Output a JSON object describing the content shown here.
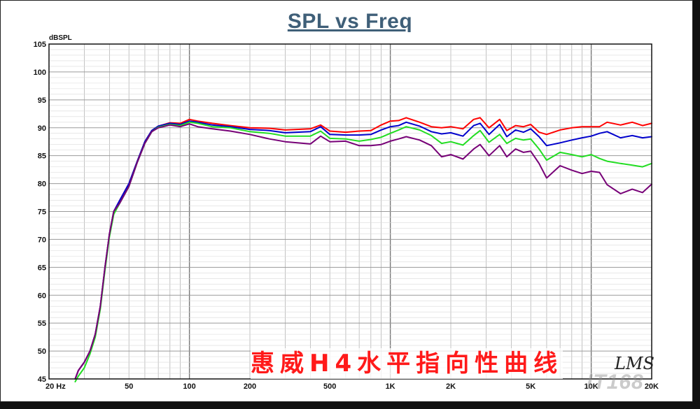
{
  "chart_data": {
    "type": "line",
    "title": "SPL vs Freq",
    "ylabel": "dBSPL",
    "xlabel": "",
    "x_scale": "log",
    "xlim": [
      20,
      20000
    ],
    "ylim": [
      45,
      105
    ],
    "y_ticks": [
      45,
      50,
      55,
      60,
      65,
      70,
      75,
      80,
      85,
      90,
      95,
      100,
      105
    ],
    "x_tick_labels": [
      {
        "value": 20,
        "label": "20  Hz"
      },
      {
        "value": 50,
        "label": "50"
      },
      {
        "value": 100,
        "label": "100"
      },
      {
        "value": 200,
        "label": "200"
      },
      {
        "value": 500,
        "label": "500"
      },
      {
        "value": 1000,
        "label": "1K"
      },
      {
        "value": 2000,
        "label": "2K"
      },
      {
        "value": 5000,
        "label": "5K"
      },
      {
        "value": 10000,
        "label": "10K"
      },
      {
        "value": 20000,
        "label": "20K"
      }
    ],
    "grid": true,
    "annotation": "惠威H4水平指向性曲线",
    "logo_text": "LMS",
    "watermark_text": "IT168",
    "series": [
      {
        "color": "#ff0000",
        "points": [
          [
            27,
            45
          ],
          [
            28,
            46.5
          ],
          [
            30,
            48
          ],
          [
            32,
            50
          ],
          [
            34,
            53
          ],
          [
            36,
            58
          ],
          [
            38,
            65
          ],
          [
            40,
            71
          ],
          [
            42,
            75
          ],
          [
            45,
            77
          ],
          [
            50,
            80
          ],
          [
            55,
            84
          ],
          [
            60,
            87.5
          ],
          [
            65,
            89.5
          ],
          [
            70,
            90.3
          ],
          [
            80,
            90.9
          ],
          [
            90,
            90.8
          ],
          [
            100,
            91.5
          ],
          [
            110,
            91.2
          ],
          [
            130,
            90.8
          ],
          [
            160,
            90.4
          ],
          [
            200,
            90
          ],
          [
            250,
            89.9
          ],
          [
            300,
            89.6
          ],
          [
            400,
            89.8
          ],
          [
            450,
            90.5
          ],
          [
            500,
            89.4
          ],
          [
            600,
            89.2
          ],
          [
            700,
            89.4
          ],
          [
            800,
            89.5
          ],
          [
            900,
            90.5
          ],
          [
            1000,
            91.2
          ],
          [
            1100,
            91.3
          ],
          [
            1200,
            91.8
          ],
          [
            1400,
            91
          ],
          [
            1600,
            90.2
          ],
          [
            1800,
            90
          ],
          [
            2000,
            90.2
          ],
          [
            2300,
            89.8
          ],
          [
            2600,
            91.5
          ],
          [
            2800,
            91.8
          ],
          [
            3100,
            90
          ],
          [
            3500,
            91.5
          ],
          [
            3800,
            89.5
          ],
          [
            4200,
            90.4
          ],
          [
            4600,
            90.2
          ],
          [
            5000,
            90.6
          ],
          [
            5500,
            89.2
          ],
          [
            6000,
            88.8
          ],
          [
            7000,
            89.6
          ],
          [
            8000,
            90
          ],
          [
            9000,
            90.2
          ],
          [
            10000,
            90.2
          ],
          [
            11000,
            90.2
          ],
          [
            12000,
            91
          ],
          [
            14000,
            90.5
          ],
          [
            16000,
            91
          ],
          [
            18000,
            90.4
          ],
          [
            20000,
            90.8
          ]
        ]
      },
      {
        "color": "#0000cc",
        "points": [
          [
            27,
            45
          ],
          [
            28,
            46.5
          ],
          [
            30,
            48
          ],
          [
            32,
            50
          ],
          [
            34,
            53
          ],
          [
            36,
            58
          ],
          [
            38,
            65
          ],
          [
            40,
            71
          ],
          [
            42,
            75
          ],
          [
            45,
            77
          ],
          [
            50,
            80
          ],
          [
            55,
            84
          ],
          [
            60,
            87.5
          ],
          [
            65,
            89.5
          ],
          [
            70,
            90.3
          ],
          [
            80,
            90.8
          ],
          [
            90,
            90.6
          ],
          [
            100,
            91.2
          ],
          [
            110,
            91
          ],
          [
            130,
            90.5
          ],
          [
            160,
            90.2
          ],
          [
            200,
            89.7
          ],
          [
            250,
            89.5
          ],
          [
            300,
            89.1
          ],
          [
            400,
            89.3
          ],
          [
            450,
            90.2
          ],
          [
            500,
            88.8
          ],
          [
            600,
            88.7
          ],
          [
            700,
            88.7
          ],
          [
            800,
            88.8
          ],
          [
            900,
            89.6
          ],
          [
            1000,
            90.2
          ],
          [
            1100,
            90.4
          ],
          [
            1200,
            91
          ],
          [
            1400,
            90.3
          ],
          [
            1600,
            89.3
          ],
          [
            1800,
            88.9
          ],
          [
            2000,
            89.1
          ],
          [
            2300,
            88.5
          ],
          [
            2600,
            90.4
          ],
          [
            2800,
            90.8
          ],
          [
            3100,
            88.8
          ],
          [
            3500,
            90.6
          ],
          [
            3800,
            88.4
          ],
          [
            4200,
            89.6
          ],
          [
            4600,
            89.2
          ],
          [
            5000,
            89.8
          ],
          [
            5500,
            88.4
          ],
          [
            6000,
            86.8
          ],
          [
            7000,
            87.3
          ],
          [
            8000,
            87.8
          ],
          [
            9000,
            88.2
          ],
          [
            10000,
            88.5
          ],
          [
            11000,
            89
          ],
          [
            12000,
            89.3
          ],
          [
            14000,
            88.2
          ],
          [
            16000,
            88.6
          ],
          [
            18000,
            88.2
          ],
          [
            20000,
            88.4
          ]
        ]
      },
      {
        "color": "#22dd22",
        "points": [
          [
            27,
            44.5
          ],
          [
            28,
            45.5
          ],
          [
            30,
            47
          ],
          [
            32,
            49.5
          ],
          [
            34,
            52.5
          ],
          [
            36,
            57.5
          ],
          [
            38,
            64.5
          ],
          [
            40,
            70.5
          ],
          [
            42,
            74.5
          ],
          [
            45,
            76.5
          ],
          [
            50,
            79.5
          ],
          [
            55,
            83.8
          ],
          [
            60,
            87.2
          ],
          [
            65,
            89.3
          ],
          [
            70,
            90.1
          ],
          [
            80,
            90.6
          ],
          [
            90,
            90.4
          ],
          [
            100,
            91
          ],
          [
            110,
            90.8
          ],
          [
            130,
            90.2
          ],
          [
            160,
            90
          ],
          [
            200,
            89.3
          ],
          [
            250,
            89
          ],
          [
            300,
            88.5
          ],
          [
            400,
            88.5
          ],
          [
            450,
            89.4
          ],
          [
            500,
            88.1
          ],
          [
            600,
            88
          ],
          [
            700,
            87.6
          ],
          [
            800,
            87.9
          ],
          [
            900,
            88.3
          ],
          [
            1000,
            89
          ],
          [
            1100,
            89.6
          ],
          [
            1200,
            90.2
          ],
          [
            1400,
            89.6
          ],
          [
            1600,
            88.6
          ],
          [
            1800,
            87.2
          ],
          [
            2000,
            87.5
          ],
          [
            2300,
            86.9
          ],
          [
            2600,
            88.6
          ],
          [
            2800,
            89.5
          ],
          [
            3100,
            87.4
          ],
          [
            3500,
            88.8
          ],
          [
            3800,
            87.2
          ],
          [
            4200,
            88.1
          ],
          [
            4600,
            87.8
          ],
          [
            5000,
            88
          ],
          [
            5500,
            86.2
          ],
          [
            6000,
            84.2
          ],
          [
            7000,
            85.6
          ],
          [
            8000,
            85.2
          ],
          [
            9000,
            84.8
          ],
          [
            10000,
            85.2
          ],
          [
            11000,
            84.5
          ],
          [
            12000,
            84
          ],
          [
            14000,
            83.6
          ],
          [
            16000,
            83.3
          ],
          [
            18000,
            83
          ],
          [
            20000,
            83.6
          ]
        ]
      },
      {
        "color": "#770077",
        "points": [
          [
            27,
            45
          ],
          [
            28,
            46.5
          ],
          [
            30,
            48
          ],
          [
            32,
            50
          ],
          [
            34,
            53
          ],
          [
            36,
            58
          ],
          [
            38,
            65
          ],
          [
            40,
            71
          ],
          [
            42,
            75
          ],
          [
            45,
            76.5
          ],
          [
            50,
            79.5
          ],
          [
            55,
            83.8
          ],
          [
            60,
            87.2
          ],
          [
            65,
            89.3
          ],
          [
            70,
            90
          ],
          [
            80,
            90.5
          ],
          [
            90,
            90.2
          ],
          [
            100,
            90.7
          ],
          [
            110,
            90.2
          ],
          [
            130,
            89.8
          ],
          [
            160,
            89.4
          ],
          [
            200,
            88.8
          ],
          [
            250,
            88
          ],
          [
            300,
            87.5
          ],
          [
            400,
            87.1
          ],
          [
            450,
            88.5
          ],
          [
            500,
            87.5
          ],
          [
            600,
            87.6
          ],
          [
            700,
            86.8
          ],
          [
            800,
            86.8
          ],
          [
            900,
            87
          ],
          [
            1000,
            87.6
          ],
          [
            1100,
            88
          ],
          [
            1200,
            88.4
          ],
          [
            1400,
            87.8
          ],
          [
            1600,
            86.8
          ],
          [
            1800,
            84.8
          ],
          [
            2000,
            85.2
          ],
          [
            2300,
            84.4
          ],
          [
            2600,
            86.2
          ],
          [
            2800,
            87
          ],
          [
            3100,
            85
          ],
          [
            3500,
            86.8
          ],
          [
            3800,
            84.8
          ],
          [
            4200,
            86.2
          ],
          [
            4600,
            85.6
          ],
          [
            5000,
            85.8
          ],
          [
            5500,
            83.6
          ],
          [
            6000,
            81
          ],
          [
            7000,
            83.2
          ],
          [
            8000,
            82.4
          ],
          [
            9000,
            81.8
          ],
          [
            10000,
            82.2
          ],
          [
            11000,
            82
          ],
          [
            12000,
            79.8
          ],
          [
            14000,
            78.2
          ],
          [
            16000,
            79
          ],
          [
            18000,
            78.4
          ],
          [
            20000,
            79.9
          ]
        ]
      }
    ]
  }
}
